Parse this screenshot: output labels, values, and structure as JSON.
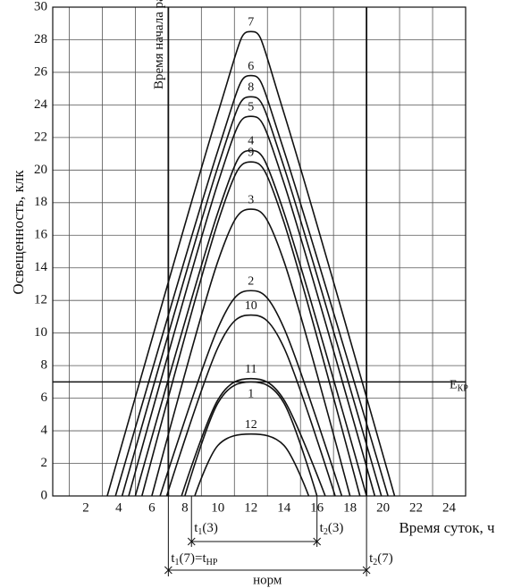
{
  "chart_data": {
    "type": "line",
    "y_label": "Освещенность, клк",
    "x_label": "Время суток, ч",
    "xlim": [
      0,
      25
    ],
    "ylim": [
      0,
      30
    ],
    "xticks": [
      2,
      4,
      6,
      8,
      10,
      12,
      14,
      16,
      18,
      20,
      22,
      24
    ],
    "yticks": [
      0,
      2,
      4,
      6,
      8,
      10,
      12,
      14,
      16,
      18,
      20,
      22,
      24,
      26,
      28,
      30
    ],
    "grid": true,
    "series": [
      {
        "name": "7",
        "color": "#111",
        "x": [
          3.3,
          10,
          12,
          14,
          20.7
        ],
        "values": [
          0,
          23.5,
          28.5,
          23.5,
          0
        ]
      },
      {
        "name": "6",
        "color": "#111",
        "x": [
          3.8,
          10,
          12,
          14,
          20.3
        ],
        "values": [
          0,
          21.2,
          25.8,
          21.2,
          0
        ]
      },
      {
        "name": "8",
        "color": "#111",
        "x": [
          4.2,
          10,
          12,
          14,
          19.9
        ],
        "values": [
          0,
          20.2,
          24.5,
          20.2,
          0
        ]
      },
      {
        "name": "5",
        "color": "#111",
        "x": [
          4.6,
          10,
          12,
          14,
          19.5
        ],
        "values": [
          0,
          19.2,
          23.3,
          19.2,
          0
        ]
      },
      {
        "name": "4",
        "color": "#111",
        "x": [
          5.0,
          10,
          12,
          14,
          19.0
        ],
        "values": [
          0,
          17.4,
          21.2,
          17.4,
          0
        ]
      },
      {
        "name": "9",
        "color": "#111",
        "x": [
          5.4,
          10,
          12,
          14,
          18.6
        ],
        "values": [
          0,
          16.8,
          20.5,
          16.8,
          0
        ]
      },
      {
        "name": "3",
        "color": "#111",
        "x": [
          6.0,
          10,
          12,
          14,
          18.0
        ],
        "values": [
          0,
          14.4,
          17.6,
          14.4,
          0
        ]
      },
      {
        "name": "2",
        "color": "#111",
        "x": [
          6.5,
          10,
          12,
          14,
          17.5
        ],
        "values": [
          0,
          10.3,
          12.6,
          10.3,
          0
        ]
      },
      {
        "name": "10",
        "color": "#111",
        "x": [
          6.9,
          10,
          12,
          14,
          17.1
        ],
        "values": [
          0,
          9.1,
          11.1,
          9.1,
          0
        ]
      },
      {
        "name": "11",
        "color": "#111",
        "x": [
          7.8,
          10,
          12,
          14,
          16.5
        ],
        "values": [
          0,
          5.9,
          7.2,
          5.9,
          0
        ]
      },
      {
        "name": "1",
        "color": "#111",
        "x": [
          8.0,
          10,
          12,
          14,
          16.0
        ],
        "values": [
          0,
          5.7,
          7.0,
          5.7,
          0
        ]
      },
      {
        "name": "12",
        "color": "#111",
        "x": [
          8.6,
          10,
          12,
          14,
          15.5
        ],
        "values": [
          0,
          3.1,
          3.8,
          3.1,
          0
        ]
      }
    ],
    "hline": {
      "value": 7,
      "label": "E",
      "sub": "КР"
    },
    "vlines": [
      {
        "value": 7,
        "label": "Время начала работы"
      },
      {
        "value": 19
      }
    ],
    "dim_short": {
      "from": 8.4,
      "to": 16,
      "from_label": {
        "main": "t",
        "sub": "1",
        "rest": "(3)"
      },
      "to_label": {
        "main": "t",
        "sub": "2",
        "rest": "(3)"
      }
    },
    "dim_long": {
      "from": 7,
      "to": 19,
      "from_label": {
        "main": "t",
        "sub": "1",
        "rest": "(7)=t",
        "sub2": "НР"
      },
      "to_label": {
        "main": "t",
        "sub": "2",
        "rest": "(7)"
      },
      "label": "норм"
    }
  }
}
